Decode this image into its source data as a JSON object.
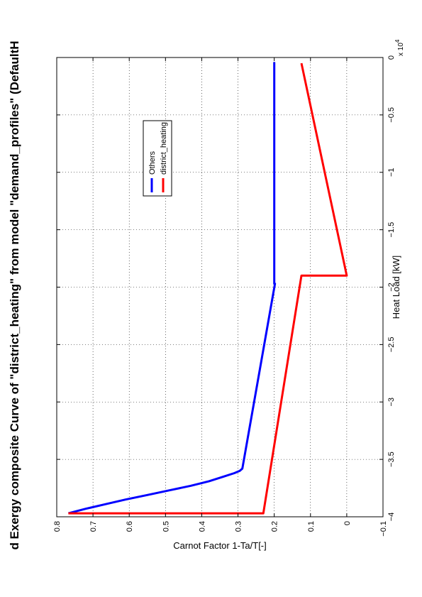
{
  "chart_data": {
    "type": "line",
    "title": "d Exergy composite Curve of \"district_heating\" from model \"demand_profiles\" (DefaultH",
    "xlabel": "Heat Load [kW]",
    "ylabel": "Carnot Factor 1-Ta/T[-]",
    "x_multiplier": "x 10",
    "x_multiplier_exp": "4",
    "xlim": [
      -4,
      0
    ],
    "ylim": [
      -0.1,
      0.8
    ],
    "x_ticks": [
      -4,
      -3.5,
      -3,
      -2.5,
      -2,
      -1.5,
      -1,
      -0.5,
      0
    ],
    "x_tick_labels": [
      "−4",
      "−3.5",
      "−3",
      "−2.5",
      "−2",
      "−1.5",
      "−1",
      "−0.5",
      "0"
    ],
    "y_ticks": [
      -0.1,
      0,
      0.1,
      0.2,
      0.3,
      0.4,
      0.5,
      0.6,
      0.7,
      0.8
    ],
    "y_tick_labels": [
      "−0.1",
      "0",
      "0.1",
      "0.2",
      "0.3",
      "0.4",
      "0.5",
      "0.6",
      "0.7",
      "0.8"
    ],
    "grid": true,
    "legend_position": "upper-middle",
    "series": [
      {
        "name": "Others",
        "color": "#0000ff",
        "x": [
          -3.97,
          -3.93,
          -3.89,
          -3.85,
          -3.81,
          -3.77,
          -3.73,
          -3.69,
          -3.65,
          -3.62,
          -3.6,
          -3.58,
          -1.97,
          -1.97,
          -0.04
        ],
        "y": [
          0.768,
          0.72,
          0.665,
          0.61,
          0.55,
          0.49,
          0.43,
          0.38,
          0.34,
          0.31,
          0.295,
          0.288,
          0.198,
          0.2,
          0.2
        ]
      },
      {
        "name": "district_heating",
        "color": "#ff0000",
        "x": [
          -3.97,
          -3.97,
          -3.97,
          -1.9,
          -1.9,
          -1.9,
          -0.05
        ],
        "y": [
          0.768,
          0.23,
          0.23,
          0.125,
          0.125,
          0,
          0.125
        ]
      }
    ]
  }
}
